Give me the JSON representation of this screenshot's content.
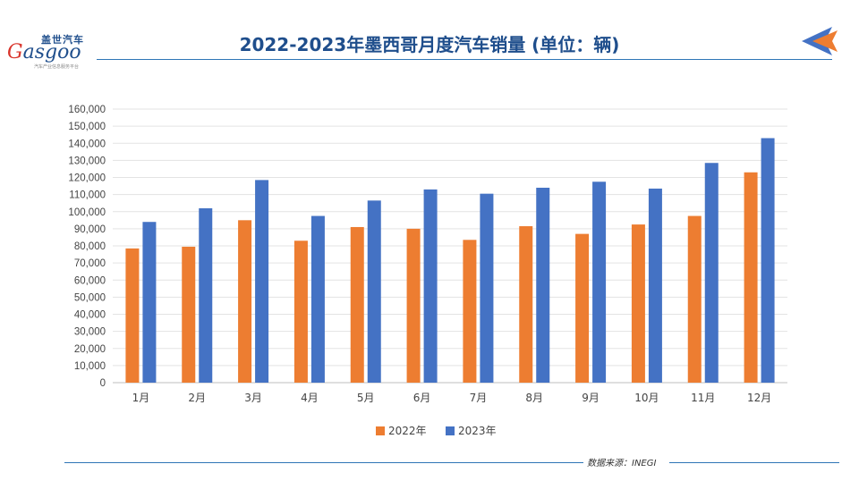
{
  "logo": {
    "cn": "盖世汽车",
    "en_g": "G",
    "en_rest": "asgoo",
    "tagline": "汽车产业信息服务平台"
  },
  "header": {
    "title": "2022-2023年墨西哥月度汽车销量 (单位：辆)"
  },
  "footer": {
    "source": "数据来源：INEGI"
  },
  "colors": {
    "accent": "#1f4e8c",
    "series_2022": "#ed7d31",
    "series_2023": "#4472c4",
    "corner_orange": "#ed7d31",
    "corner_blue": "#4472c4"
  },
  "chart_data": {
    "type": "bar",
    "categories": [
      "1月",
      "2月",
      "3月",
      "4月",
      "5月",
      "6月",
      "7月",
      "8月",
      "9月",
      "10月",
      "11月",
      "12月"
    ],
    "series": [
      {
        "name": "2022年",
        "color": "#ed7d31",
        "values": [
          78500,
          79500,
          95000,
          83000,
          91000,
          90000,
          83500,
          91500,
          87000,
          92500,
          97500,
          123000
        ]
      },
      {
        "name": "2023年",
        "color": "#4472c4",
        "values": [
          94000,
          102000,
          118500,
          97500,
          106500,
          113000,
          110500,
          114000,
          117500,
          113500,
          128500,
          143000
        ]
      }
    ],
    "ylim": [
      0,
      160000
    ],
    "yticks": [
      "0",
      "10,000",
      "20,000",
      "30,000",
      "40,000",
      "50,000",
      "60,000",
      "70,000",
      "80,000",
      "90,000",
      "100,000",
      "110,000",
      "120,000",
      "130,000",
      "140,000",
      "150,000",
      "160,000"
    ],
    "grid": true,
    "legend": "bottom"
  }
}
